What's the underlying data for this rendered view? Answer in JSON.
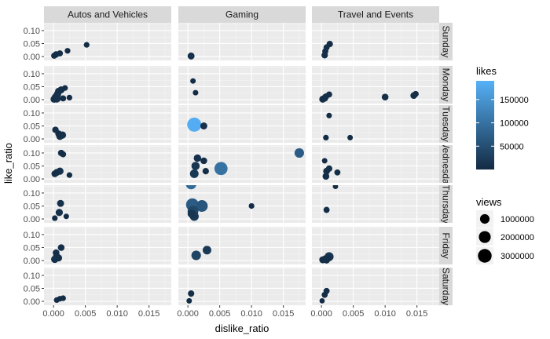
{
  "chart_data": {
    "type": "scatter",
    "xlabel": "dislike_ratio",
    "ylabel": "like_ratio",
    "xlim": [
      -0.0015,
      0.0185
    ],
    "ylim": [
      -0.015,
      0.13
    ],
    "x_ticks": [
      "0.000",
      "0.005",
      "0.010",
      "0.015"
    ],
    "x_tick_values": [
      0,
      0.005,
      0.01,
      0.015
    ],
    "y_ticks": [
      "0.00",
      "0.05",
      "0.10"
    ],
    "y_tick_values": [
      0,
      0.05,
      0.1
    ],
    "facet_cols": [
      "Autos and Vehicles",
      "Gaming",
      "Travel and Events"
    ],
    "facet_rows": [
      "Sunday",
      "Monday",
      "Tuesday",
      "Wednesday",
      "Thursday",
      "Friday",
      "Saturday"
    ],
    "grid": true,
    "legend_position": "right",
    "color_legend": {
      "title": "likes",
      "labels": [
        "150000",
        "100000",
        "50000"
      ],
      "values": [
        150000,
        100000,
        50000
      ],
      "min": 0,
      "max": 190000,
      "low_color": "#132B43",
      "high_color": "#56B1F7"
    },
    "size_legend": {
      "title": "views",
      "labels": [
        "1000000",
        "2000000",
        "3000000"
      ],
      "values": [
        1000000,
        2000000,
        3000000
      ]
    },
    "panels": [
      {
        "col": "Autos and Vehicles",
        "row": "Sunday",
        "points": [
          {
            "x": 0.0001,
            "y": 0.003,
            "likes": 4000,
            "views": 150000
          },
          {
            "x": 0.0004,
            "y": 0.008,
            "likes": 6000,
            "views": 200000
          },
          {
            "x": 0.001,
            "y": 0.012,
            "likes": 5000,
            "views": 150000
          },
          {
            "x": 0.0022,
            "y": 0.022,
            "likes": 3000,
            "views": 100000
          },
          {
            "x": 0.0052,
            "y": 0.045,
            "likes": 3000,
            "views": 100000
          }
        ]
      },
      {
        "col": "Gaming",
        "row": "Sunday",
        "points": [
          {
            "x": 0.0005,
            "y": 0.002,
            "likes": 8000,
            "views": 300000
          }
        ]
      },
      {
        "col": "Travel and Events",
        "row": "Sunday",
        "points": [
          {
            "x": 0.0005,
            "y": 0.005,
            "likes": 5000,
            "views": 200000
          },
          {
            "x": 0.0006,
            "y": 0.02,
            "likes": 5000,
            "views": 150000
          },
          {
            "x": 0.0008,
            "y": 0.035,
            "likes": 5000,
            "views": 150000
          },
          {
            "x": 0.0013,
            "y": 0.048,
            "likes": 6000,
            "views": 200000
          }
        ]
      },
      {
        "col": "Autos and Vehicles",
        "row": "Monday",
        "points": [
          {
            "x": 0.0001,
            "y": 0.002,
            "likes": 8000,
            "views": 350000
          },
          {
            "x": 0.0003,
            "y": 0.01,
            "likes": 8000,
            "views": 350000
          },
          {
            "x": 0.0006,
            "y": 0.02,
            "likes": 9000,
            "views": 400000
          },
          {
            "x": 0.0008,
            "y": 0.032,
            "likes": 8000,
            "views": 350000
          },
          {
            "x": 0.0012,
            "y": 0.038,
            "likes": 7000,
            "views": 300000
          },
          {
            "x": 0.0005,
            "y": 0.004,
            "likes": 10000,
            "views": 500000
          },
          {
            "x": 0.0015,
            "y": 0.005,
            "likes": 5000,
            "views": 150000
          },
          {
            "x": 0.0025,
            "y": 0.008,
            "likes": 4000,
            "views": 100000
          },
          {
            "x": 0.0018,
            "y": 0.045,
            "likes": 4000,
            "views": 100000
          }
        ]
      },
      {
        "col": "Gaming",
        "row": "Monday",
        "points": [
          {
            "x": 0.0008,
            "y": 0.072,
            "likes": 3000,
            "views": 80000
          },
          {
            "x": 0.0012,
            "y": 0.027,
            "likes": 3000,
            "views": 80000
          }
        ]
      },
      {
        "col": "Travel and Events",
        "row": "Monday",
        "points": [
          {
            "x": 0.0002,
            "y": 0.002,
            "likes": 6000,
            "views": 300000
          },
          {
            "x": 0.0005,
            "y": 0.006,
            "likes": 6000,
            "views": 300000
          },
          {
            "x": 0.0007,
            "y": 0.012,
            "likes": 5000,
            "views": 200000
          },
          {
            "x": 0.0012,
            "y": 0.02,
            "likes": 5000,
            "views": 150000
          },
          {
            "x": 0.01,
            "y": 0.01,
            "likes": 6000,
            "views": 250000
          },
          {
            "x": 0.0145,
            "y": 0.016,
            "likes": 6000,
            "views": 250000
          },
          {
            "x": 0.0148,
            "y": 0.022,
            "likes": 5000,
            "views": 150000
          }
        ]
      },
      {
        "col": "Autos and Vehicles",
        "row": "Tuesday",
        "points": [
          {
            "x": 0.0003,
            "y": 0.035,
            "likes": 5000,
            "views": 200000
          },
          {
            "x": 0.001,
            "y": 0.01,
            "likes": 8000,
            "views": 350000
          },
          {
            "x": 0.0014,
            "y": 0.015,
            "likes": 8000,
            "views": 350000
          },
          {
            "x": 0.0008,
            "y": 0.02,
            "likes": 6000,
            "views": 250000
          }
        ]
      },
      {
        "col": "Gaming",
        "row": "Tuesday",
        "points": [
          {
            "x": 0.001,
            "y": 0.055,
            "likes": 185000,
            "views": 3300000
          },
          {
            "x": 0.0025,
            "y": 0.05,
            "likes": 8000,
            "views": 300000
          }
        ]
      },
      {
        "col": "Travel and Events",
        "row": "Tuesday",
        "points": [
          {
            "x": 0.0012,
            "y": 0.09,
            "likes": 2000,
            "views": 80000
          },
          {
            "x": 0.0007,
            "y": 0.005,
            "likes": 3000,
            "views": 100000
          },
          {
            "x": 0.0045,
            "y": 0.005,
            "likes": 2000,
            "views": 80000
          }
        ]
      },
      {
        "col": "Autos and Vehicles",
        "row": "Wednesday",
        "points": [
          {
            "x": 0.0002,
            "y": 0.02,
            "likes": 6000,
            "views": 250000
          },
          {
            "x": 0.0005,
            "y": 0.025,
            "likes": 7000,
            "views": 300000
          },
          {
            "x": 0.001,
            "y": 0.03,
            "likes": 8000,
            "views": 350000
          },
          {
            "x": 0.0012,
            "y": 0.1,
            "likes": 5000,
            "views": 200000
          },
          {
            "x": 0.0015,
            "y": 0.095,
            "likes": 4000,
            "views": 150000
          },
          {
            "x": 0.0025,
            "y": 0.015,
            "likes": 3000,
            "views": 100000
          }
        ]
      },
      {
        "col": "Gaming",
        "row": "Wednesday",
        "points": [
          {
            "x": 0.001,
            "y": 0.02,
            "likes": 18000,
            "views": 700000
          },
          {
            "x": 0.0012,
            "y": 0.05,
            "likes": 15000,
            "views": 600000
          },
          {
            "x": 0.0015,
            "y": 0.08,
            "likes": 10000,
            "views": 400000
          },
          {
            "x": 0.0025,
            "y": 0.07,
            "likes": 6000,
            "views": 250000
          },
          {
            "x": 0.0028,
            "y": 0.03,
            "likes": 5000,
            "views": 200000
          },
          {
            "x": 0.0052,
            "y": 0.04,
            "likes": 100000,
            "views": 2700000
          },
          {
            "x": 0.0175,
            "y": 0.1,
            "likes": 70000,
            "views": 1000000
          }
        ]
      },
      {
        "col": "Travel and Events",
        "row": "Wednesday",
        "points": [
          {
            "x": 0.0005,
            "y": 0.07,
            "likes": 2000,
            "views": 80000
          },
          {
            "x": 0.0008,
            "y": 0.03,
            "likes": 6000,
            "views": 250000
          },
          {
            "x": 0.0012,
            "y": 0.04,
            "likes": 5000,
            "views": 200000
          },
          {
            "x": 0.0007,
            "y": 0.01,
            "likes": 6000,
            "views": 250000
          },
          {
            "x": 0.0025,
            "y": 0.025,
            "likes": 4000,
            "views": 150000
          }
        ]
      },
      {
        "col": "Autos and Vehicles",
        "row": "Thursday",
        "points": [
          {
            "x": 0.0002,
            "y": 0.003,
            "likes": 3000,
            "views": 100000
          },
          {
            "x": 0.0009,
            "y": 0.025,
            "likes": 8000,
            "views": 350000
          },
          {
            "x": 0.0011,
            "y": 0.06,
            "likes": 7000,
            "views": 300000
          },
          {
            "x": 0.002,
            "y": 0.01,
            "likes": 3000,
            "views": 80000
          }
        ]
      },
      {
        "col": "Gaming",
        "row": "Thursday",
        "points": [
          {
            "x": 0.0005,
            "y": 0.135,
            "likes": 90000,
            "views": 1500000
          },
          {
            "x": 0.0007,
            "y": 0.055,
            "likes": 70000,
            "views": 2400000
          },
          {
            "x": 0.0008,
            "y": 0.03,
            "likes": 40000,
            "views": 1500000
          },
          {
            "x": 0.001,
            "y": 0.01,
            "likes": 20000,
            "views": 800000
          },
          {
            "x": 0.0006,
            "y": 0.02,
            "likes": 15000,
            "views": 600000
          },
          {
            "x": 0.0022,
            "y": 0.05,
            "likes": 60000,
            "views": 1900000
          },
          {
            "x": 0.01,
            "y": 0.05,
            "likes": 4000,
            "views": 100000
          }
        ]
      },
      {
        "col": "Travel and Events",
        "row": "Thursday",
        "points": [
          {
            "x": 0.0022,
            "y": 0.125,
            "likes": 1500,
            "views": 60000
          },
          {
            "x": 0.0008,
            "y": 0.035,
            "likes": 4000,
            "views": 150000
          }
        ]
      },
      {
        "col": "Autos and Vehicles",
        "row": "Friday",
        "points": [
          {
            "x": 0.0002,
            "y": 0.005,
            "likes": 8000,
            "views": 400000
          },
          {
            "x": 0.0005,
            "y": 0.015,
            "likes": 8000,
            "views": 400000
          },
          {
            "x": 0.0008,
            "y": 0.01,
            "likes": 7000,
            "views": 300000
          },
          {
            "x": 0.0004,
            "y": 0.03,
            "likes": 6000,
            "views": 250000
          },
          {
            "x": 0.0012,
            "y": 0.05,
            "likes": 6000,
            "views": 250000
          }
        ]
      },
      {
        "col": "Gaming",
        "row": "Friday",
        "points": [
          {
            "x": 0.0013,
            "y": 0.02,
            "likes": 35000,
            "views": 1000000
          },
          {
            "x": 0.003,
            "y": 0.04,
            "likes": 20000,
            "views": 700000
          }
        ]
      },
      {
        "col": "Travel and Events",
        "row": "Friday",
        "points": [
          {
            "x": 0.0002,
            "y": 0.003,
            "likes": 6000,
            "views": 300000
          },
          {
            "x": 0.0006,
            "y": 0.006,
            "likes": 7000,
            "views": 350000
          },
          {
            "x": 0.001,
            "y": 0.01,
            "likes": 8000,
            "views": 400000
          },
          {
            "x": 0.0012,
            "y": 0.015,
            "likes": 15000,
            "views": 800000
          },
          {
            "x": 0.0008,
            "y": 0.002,
            "likes": 6000,
            "views": 300000
          }
        ]
      },
      {
        "col": "Autos and Vehicles",
        "row": "Saturday",
        "points": [
          {
            "x": 0.0005,
            "y": 0.005,
            "likes": 3000,
            "views": 100000
          },
          {
            "x": 0.001,
            "y": 0.01,
            "likes": 3000,
            "views": 100000
          },
          {
            "x": 0.0015,
            "y": 0.012,
            "likes": 3000,
            "views": 100000
          }
        ]
      },
      {
        "col": "Gaming",
        "row": "Saturday",
        "points": [
          {
            "x": 0.0002,
            "y": 0.002,
            "likes": 3000,
            "views": 80000
          },
          {
            "x": 0.0005,
            "y": 0.03,
            "likes": 5000,
            "views": 200000
          }
        ]
      },
      {
        "col": "Travel and Events",
        "row": "Saturday",
        "points": [
          {
            "x": 0.0001,
            "y": 0.002,
            "likes": 2000,
            "views": 60000
          },
          {
            "x": 0.0005,
            "y": 0.025,
            "likes": 4000,
            "views": 150000
          },
          {
            "x": 0.0008,
            "y": 0.04,
            "likes": 4000,
            "views": 150000
          }
        ]
      }
    ]
  }
}
